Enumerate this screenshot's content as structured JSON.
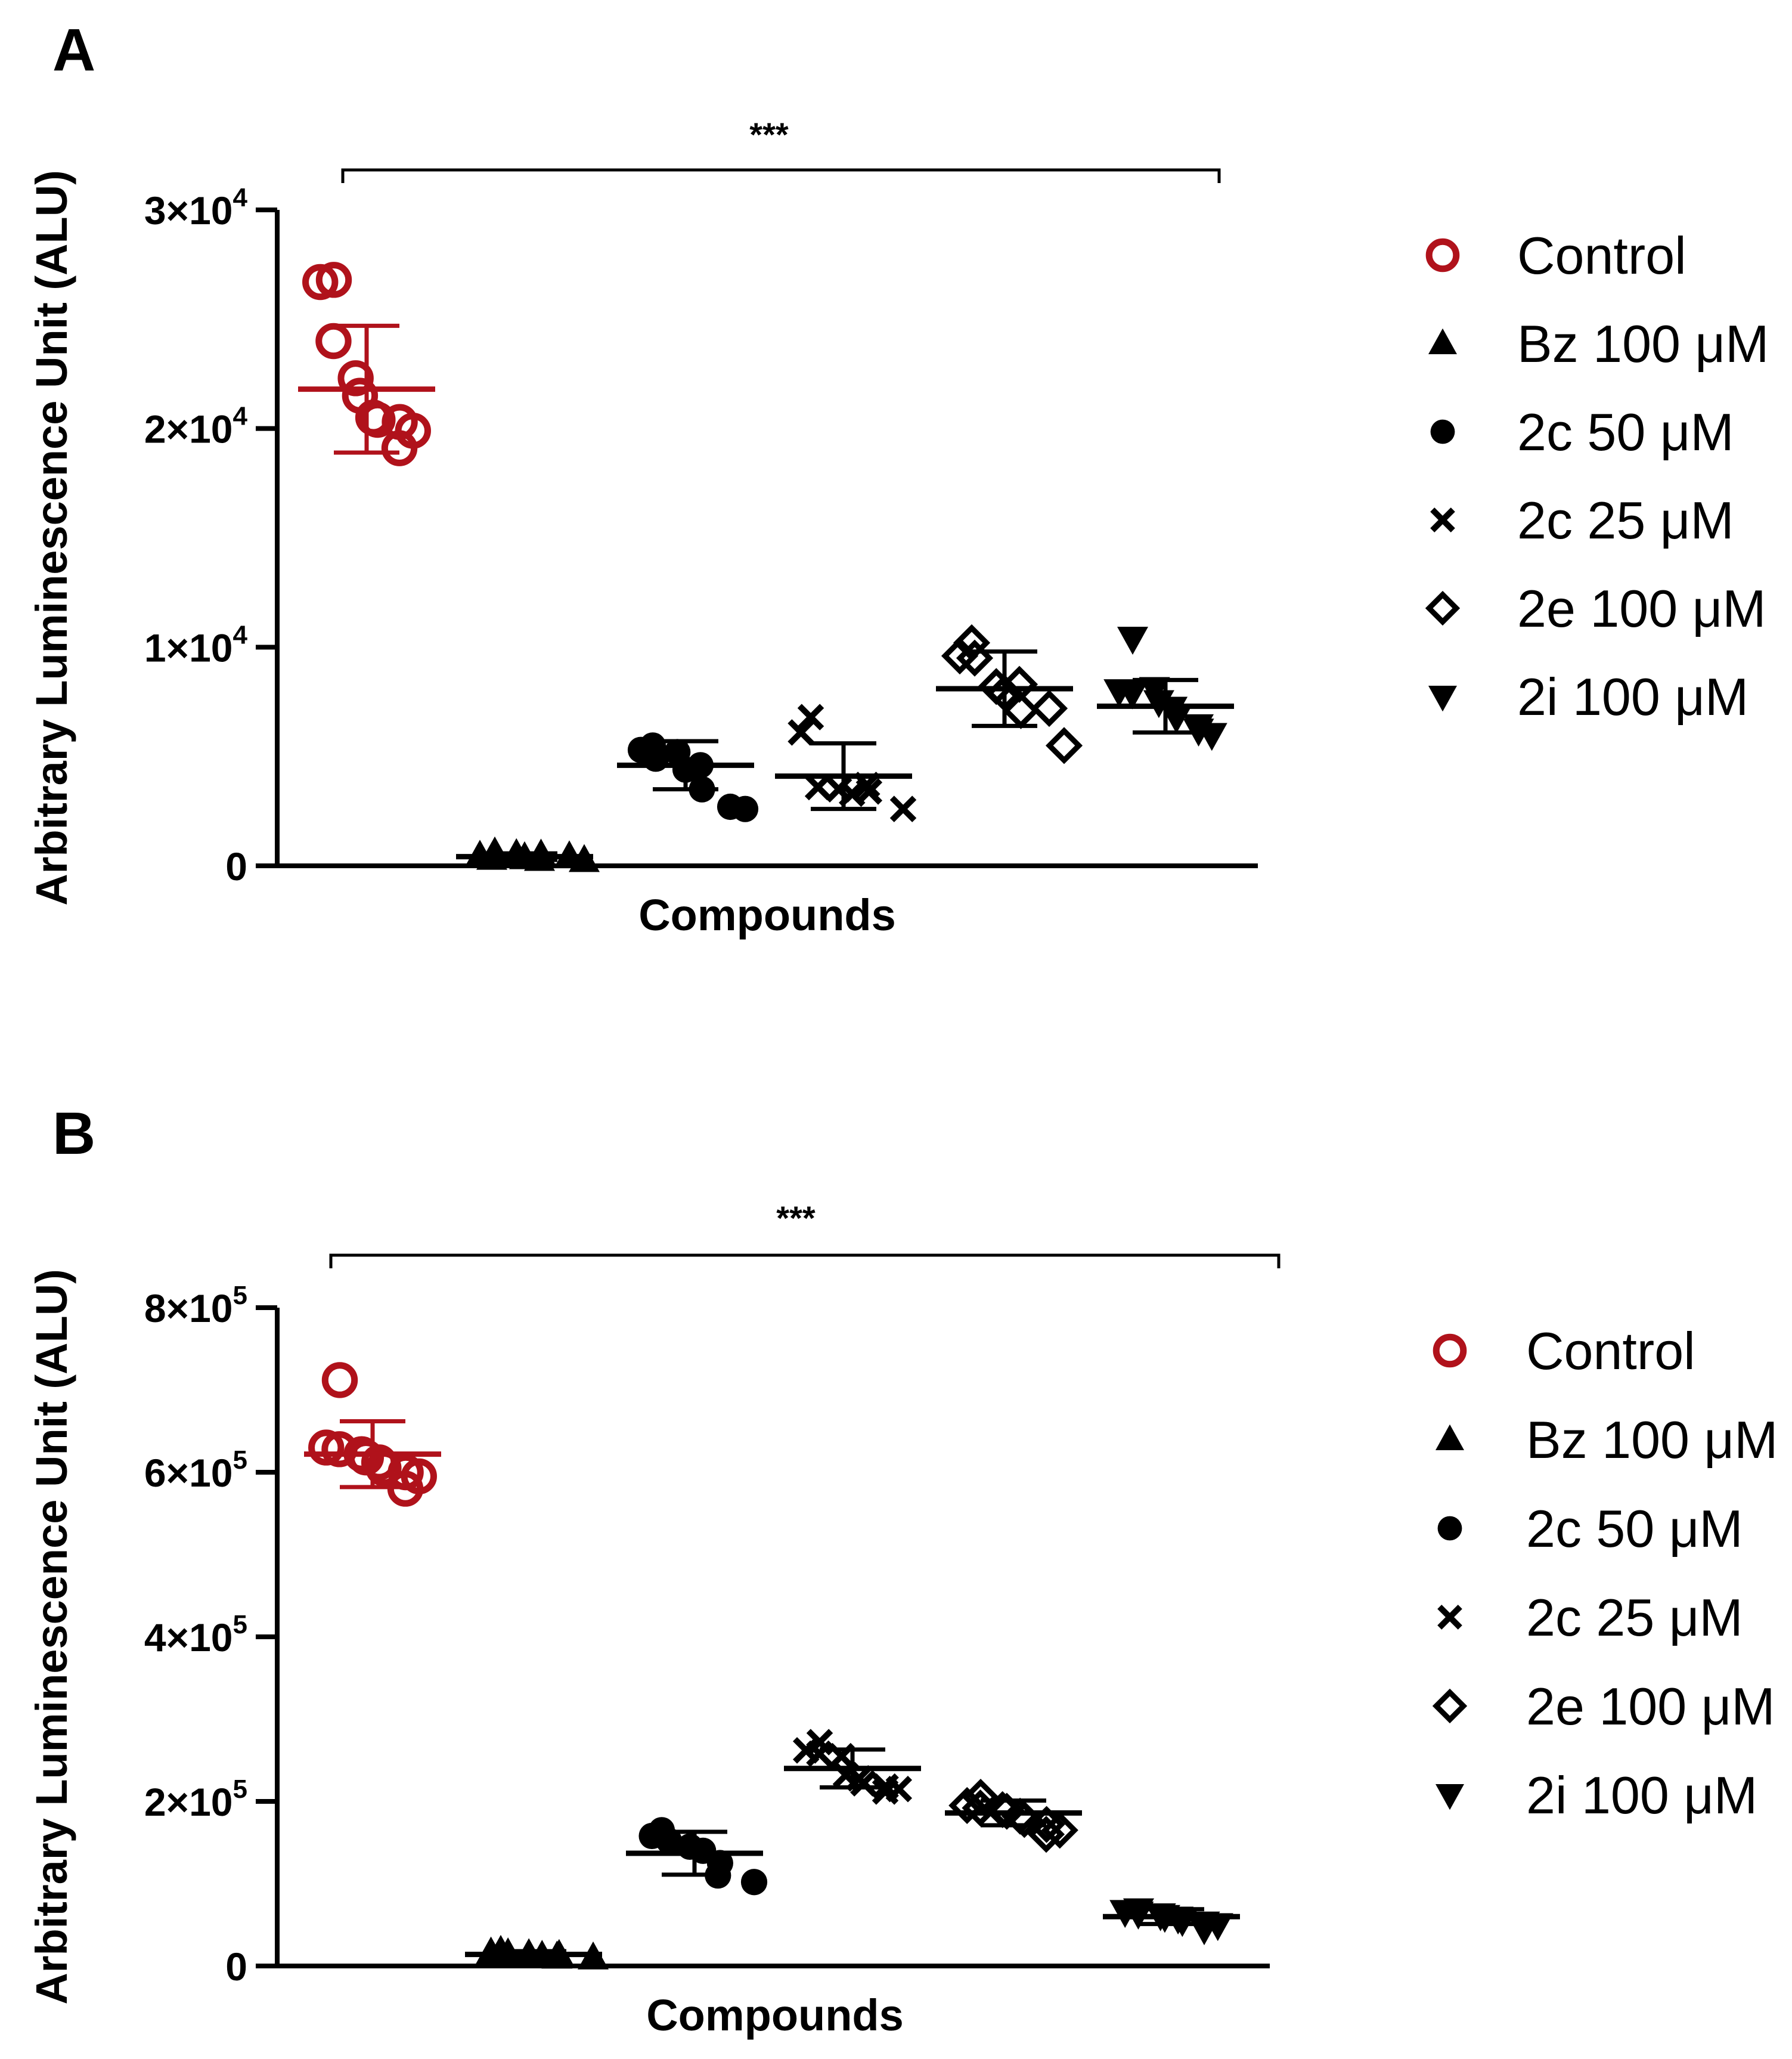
{
  "chart_data": [
    {
      "type": "scatter",
      "panel": "A",
      "title": "",
      "xlabel": "Compounds",
      "ylabel": "Arbitrary Luminescence Unit (ALU)",
      "ylim": [
        0,
        30000
      ],
      "yticks": [
        {
          "value": 0,
          "mantissa": "0",
          "exp": ""
        },
        {
          "value": 10000,
          "mantissa": "1×10",
          "exp": "4"
        },
        {
          "value": 20000,
          "mantissa": "2×10",
          "exp": "4"
        },
        {
          "value": 30000,
          "mantissa": "3×10",
          "exp": "4"
        }
      ],
      "significance": "***",
      "series": [
        {
          "name": "Control",
          "marker": "open-circle",
          "color": "#b0121b",
          "mean": 21800,
          "sd": 2900,
          "values": [
            26800,
            26700,
            24000,
            22300,
            21500,
            20500,
            20400,
            20300,
            19900,
            19100
          ]
        },
        {
          "name": "Bz 100 μM",
          "marker": "triangle-up",
          "color": "#000000",
          "mean": 420,
          "sd": 150,
          "values": [
            350,
            450,
            600,
            520,
            380,
            300,
            500,
            420,
            250
          ]
        },
        {
          "name": "2c 50 μM",
          "marker": "filled-circle",
          "color": "#000000",
          "mean": 4600,
          "sd": 1100,
          "values": [
            5500,
            5300,
            4900,
            5200,
            4400,
            4600,
            3500,
            2700,
            2600
          ]
        },
        {
          "name": "2c 25 μM",
          "marker": "x-cross",
          "color": "#000000",
          "mean": 4100,
          "sd": 1500,
          "values": [
            6800,
            6100,
            3600,
            3500,
            3300,
            3400,
            3700,
            2600
          ]
        },
        {
          "name": "2e 100 μM",
          "marker": "open-diamond",
          "color": "#000000",
          "mean": 8100,
          "sd": 1700,
          "values": [
            10200,
            9600,
            9500,
            8200,
            7900,
            8300,
            7100,
            7200,
            5500
          ]
        },
        {
          "name": "2i 100 μM",
          "marker": "triangle-down",
          "color": "#000000",
          "mean": 7300,
          "sd": 1200,
          "values": [
            10400,
            8000,
            7900,
            8100,
            7500,
            7200,
            6800,
            6200,
            6000,
            6400
          ]
        }
      ]
    },
    {
      "type": "scatter",
      "panel": "B",
      "title": "",
      "xlabel": "Compounds",
      "ylabel": "Arbitrary Luminescence Unit (ALU)",
      "ylim": [
        0,
        800000
      ],
      "yticks": [
        {
          "value": 0,
          "mantissa": "0",
          "exp": ""
        },
        {
          "value": 200000,
          "mantissa": "2×10",
          "exp": "5"
        },
        {
          "value": 400000,
          "mantissa": "4×10",
          "exp": "5"
        },
        {
          "value": 600000,
          "mantissa": "6×10",
          "exp": "5"
        },
        {
          "value": 800000,
          "mantissa": "8×10",
          "exp": "5"
        }
      ],
      "significance": "***",
      "series": [
        {
          "name": "Control",
          "marker": "open-circle",
          "color": "#b0121b",
          "mean": 622000,
          "sd": 40000,
          "values": [
            712000,
            630000,
            628000,
            622000,
            618000,
            612000,
            605000,
            600000,
            595000,
            580000
          ]
        },
        {
          "name": "Bz 100 μM",
          "marker": "triangle-up",
          "color": "#000000",
          "mean": 14000,
          "sd": 4000,
          "values": [
            18000,
            16000,
            15000,
            14000,
            12000,
            13000,
            11000,
            10000
          ]
        },
        {
          "name": "2c 50 μM",
          "marker": "filled-circle",
          "color": "#000000",
          "mean": 137000,
          "sd": 26000,
          "values": [
            165000,
            158000,
            152000,
            145000,
            140000,
            125000,
            110000,
            102000
          ]
        },
        {
          "name": "2c 25 μM",
          "marker": "x-cross",
          "color": "#000000",
          "mean": 240000,
          "sd": 23000,
          "values": [
            272000,
            262000,
            258000,
            255000,
            232000,
            228000,
            222000,
            218000,
            215000,
            212000
          ]
        },
        {
          "name": "2e 100 μM",
          "marker": "open-diamond",
          "color": "#000000",
          "mean": 186000,
          "sd": 15000,
          "values": [
            205000,
            195000,
            192000,
            190000,
            188000,
            182000,
            178000,
            172000,
            165000,
            160000
          ]
        },
        {
          "name": "2i 100 μM",
          "marker": "triangle-down",
          "color": "#000000",
          "mean": 60000,
          "sd": 9000,
          "values": [
            68000,
            66000,
            64000,
            62000,
            60000,
            58000,
            55000,
            52000,
            50000,
            45000
          ]
        }
      ]
    }
  ],
  "legend_position": "right"
}
